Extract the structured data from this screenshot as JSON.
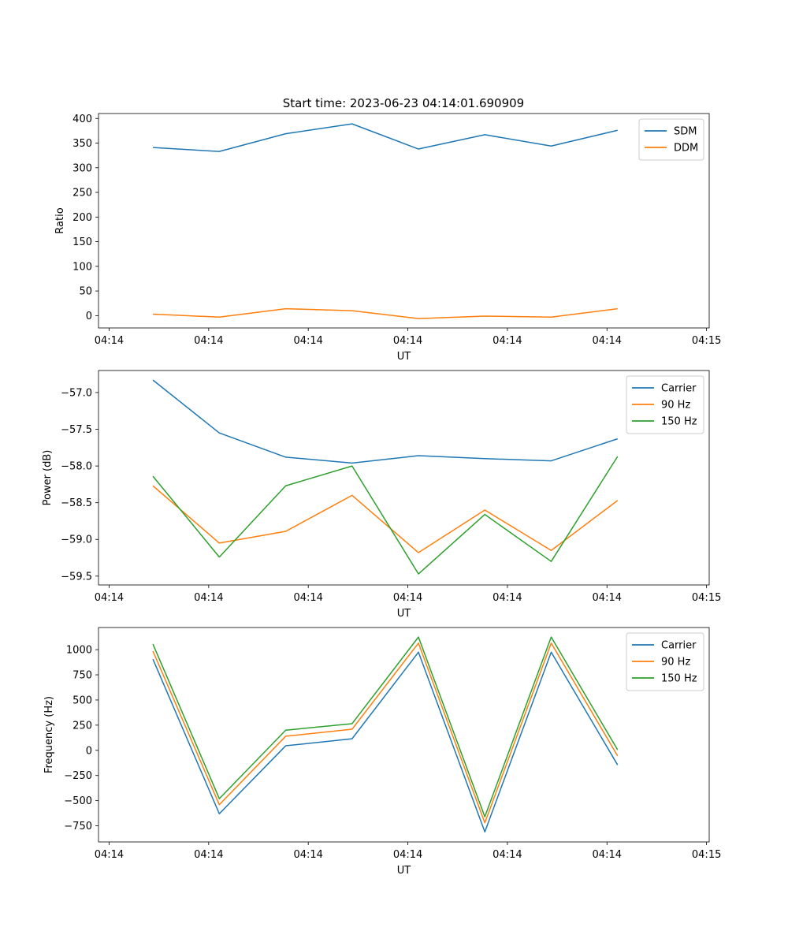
{
  "figure": {
    "title": "Start time: 2023-06-23 04:14:01.690909"
  },
  "chart_data": [
    {
      "type": "line",
      "xlabel": "UT",
      "ylabel": "Ratio",
      "x_tick_labels": [
        "04:14",
        "04:14",
        "04:14",
        "04:14",
        "04:14",
        "04:14",
        "04:14"
      ],
      "x_tick_labels_end": "04:15",
      "yticks": [
        0,
        50,
        100,
        150,
        200,
        250,
        300,
        350,
        400
      ],
      "ylim": [
        -25,
        410
      ],
      "x": [
        1,
        2,
        3,
        4,
        5,
        6,
        7,
        8
      ],
      "xlim": [
        0.18,
        9.38
      ],
      "xticks": [
        0.34,
        1.84,
        3.34,
        4.84,
        6.34,
        7.84,
        9.34
      ],
      "legend": "top-right",
      "grid": false,
      "series": [
        {
          "name": "SDM",
          "color": "#1f77b4",
          "values": [
            341,
            333,
            369,
            389,
            338,
            367,
            344,
            376
          ]
        },
        {
          "name": "DDM",
          "color": "#ff7f0e",
          "values": [
            3,
            -3,
            14,
            10,
            -6,
            -1,
            -3,
            14
          ]
        }
      ]
    },
    {
      "type": "line",
      "xlabel": "UT",
      "ylabel": "Power (dB)",
      "x_tick_labels": [
        "04:14",
        "04:14",
        "04:14",
        "04:14",
        "04:14",
        "04:14",
        "04:14"
      ],
      "x_tick_labels_end": "04:15",
      "yticks": [
        -59.5,
        -59.0,
        -58.5,
        -58.0,
        -57.5,
        -57.0
      ],
      "ytick_labels": [
        "−59.5",
        "−59.0",
        "−58.5",
        "−58.0",
        "−57.5",
        "−57.0"
      ],
      "ylim": [
        -59.62,
        -56.7
      ],
      "x": [
        1,
        2,
        3,
        4,
        5,
        6,
        7,
        8
      ],
      "xlim": [
        0.18,
        9.38
      ],
      "xticks": [
        0.34,
        1.84,
        3.34,
        4.84,
        6.34,
        7.84,
        9.34
      ],
      "legend": "top-right",
      "grid": false,
      "series": [
        {
          "name": "Carrier",
          "color": "#1f77b4",
          "values": [
            -56.83,
            -57.55,
            -57.88,
            -57.96,
            -57.86,
            -57.9,
            -57.93,
            -57.63
          ]
        },
        {
          "name": "90 Hz",
          "color": "#ff7f0e",
          "values": [
            -58.27,
            -59.05,
            -58.89,
            -58.4,
            -59.18,
            -58.6,
            -59.15,
            -58.47
          ]
        },
        {
          "name": "150 Hz",
          "color": "#2ca02c",
          "values": [
            -58.14,
            -59.24,
            -58.27,
            -58.0,
            -59.47,
            -58.66,
            -59.3,
            -57.87
          ]
        }
      ]
    },
    {
      "type": "line",
      "xlabel": "UT",
      "ylabel": "Frequency (Hz)",
      "x_tick_labels": [
        "04:14",
        "04:14",
        "04:14",
        "04:14",
        "04:14",
        "04:14",
        "04:14"
      ],
      "x_tick_labels_end": "04:15",
      "yticks": [
        -750,
        -500,
        -250,
        0,
        250,
        500,
        750,
        1000
      ],
      "ytick_labels": [
        "−750",
        "−500",
        "−250",
        "0",
        "250",
        "500",
        "750",
        "1000"
      ],
      "ylim": [
        -910,
        1220
      ],
      "x": [
        1,
        2,
        3,
        4,
        5,
        6,
        7,
        8
      ],
      "xlim": [
        0.18,
        9.38
      ],
      "xticks": [
        0.34,
        1.84,
        3.34,
        4.84,
        6.34,
        7.84,
        9.34
      ],
      "legend": "top-right",
      "grid": false,
      "series": [
        {
          "name": "Carrier",
          "color": "#1f77b4",
          "values": [
            905,
            -630,
            45,
            115,
            975,
            -810,
            975,
            -145
          ]
        },
        {
          "name": "90 Hz",
          "color": "#ff7f0e",
          "values": [
            985,
            -540,
            140,
            210,
            1065,
            -720,
            1065,
            -55
          ]
        },
        {
          "name": "150 Hz",
          "color": "#2ca02c",
          "values": [
            1055,
            -480,
            200,
            265,
            1125,
            -660,
            1125,
            5
          ]
        }
      ]
    }
  ]
}
